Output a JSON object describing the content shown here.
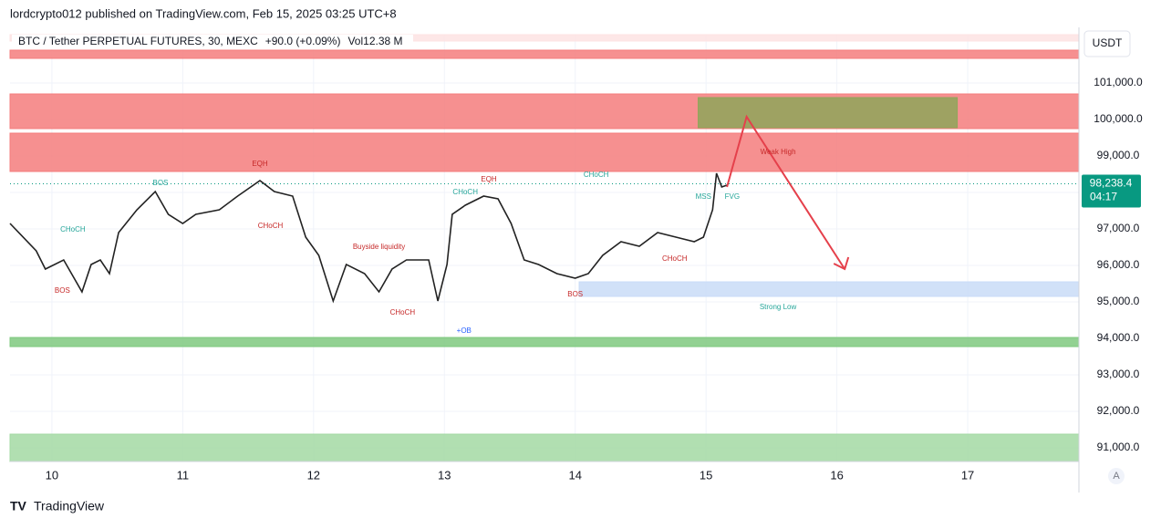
{
  "header": {
    "publisher": "lordcrypto012 published on TradingView.com, Feb 15, 2025 03:25 UTC+8"
  },
  "footer": {
    "brand": "TradingView"
  },
  "chart_data": {
    "type": "line",
    "title": "BTC / Tether PERPETUAL FUTURES, 30, MEXC",
    "change": "+90.0 (+0.09%)",
    "volume_label": "Vol",
    "volume": "12.38 M",
    "currency": "USDT",
    "scale_mode": "A",
    "last_price": {
      "value": 98238.4,
      "label": "98,238.4"
    },
    "countdown": "04:17",
    "x": [
      9.68,
      9.88,
      9.95,
      10.09,
      10.23,
      10.3,
      10.37,
      10.44,
      10.51,
      10.65,
      10.79,
      10.89,
      11.0,
      11.1,
      11.28,
      11.42,
      11.59,
      11.7,
      11.84,
      11.94,
      12.04,
      12.15,
      12.25,
      12.39,
      12.5,
      12.6,
      12.71,
      12.88,
      12.95,
      13.02,
      13.06,
      13.16,
      13.3,
      13.41,
      13.51,
      13.61,
      13.72,
      13.86,
      14.0,
      14.1,
      14.21,
      14.35,
      14.49,
      14.63,
      14.77,
      14.91,
      14.98,
      15.05,
      15.08,
      15.12,
      15.16
    ],
    "series": [
      {
        "color": "#222222",
        "values": [
          97150,
          96400,
          95900,
          96150,
          95275,
          96025,
          96150,
          95775,
          96900,
          97525,
          98025,
          97400,
          97150,
          97400,
          97525,
          97900,
          98325,
          98025,
          97900,
          96775,
          96275,
          95025,
          96025,
          95775,
          95275,
          95900,
          96150,
          96150,
          95025,
          96025,
          97400,
          97650,
          97900,
          97825,
          97150,
          96150,
          96025,
          95775,
          95650,
          95775,
          96275,
          96650,
          96525,
          96900,
          96775,
          96650,
          96775,
          97525,
          98525,
          98150,
          98200
        ]
      }
    ],
    "xlim": [
      9.68,
      17.85
    ],
    "xticks": [
      10,
      11,
      12,
      13,
      14,
      15,
      16,
      17
    ],
    "ylim": [
      90625,
      102325
    ],
    "yticks": [
      {
        "value": 101000,
        "label": "101,000.0"
      },
      {
        "value": 100000,
        "label": "100,000.0"
      },
      {
        "value": 99000,
        "label": "99,000.0"
      },
      {
        "value": 98000,
        "label": "98,000.0"
      },
      {
        "value": 97000,
        "label": "97,000.0"
      },
      {
        "value": 96000,
        "label": "96,000.0"
      },
      {
        "value": 95000,
        "label": "95,000.0"
      },
      {
        "value": 94000,
        "label": "94,000.0"
      },
      {
        "value": 93000,
        "label": "93,000.0"
      },
      {
        "value": 92000,
        "label": "92,000.0"
      },
      {
        "value": 91000,
        "label": "91,000.0"
      }
    ],
    "grid": true,
    "zones": [
      {
        "from": 102150,
        "to": 102325,
        "color": "#fde3e3"
      },
      {
        "from": 101675,
        "to": 101900,
        "color": "#f47c7c"
      },
      {
        "from": 99750,
        "to": 100700,
        "color": "#f47c7c"
      },
      {
        "from": 98575,
        "to": 99625,
        "color": "#f47c7c"
      },
      {
        "from": 93775,
        "to": 94025,
        "color": "#7fc97f"
      },
      {
        "from": 90625,
        "to": 91375,
        "color": "#a3d9a3"
      },
      {
        "from": 95150,
        "to": 95550,
        "color": "#c9dcf7",
        "x": [
          14.03,
          17.85
        ]
      },
      {
        "from": 99775,
        "to": 100600,
        "color": "#8ea65a",
        "x": [
          14.94,
          16.92
        ]
      }
    ],
    "projection": {
      "color": "#e5404b",
      "x": [
        15.16,
        15.31,
        16.06
      ],
      "values": [
        98150,
        100075,
        95900
      ]
    },
    "annotations": [
      {
        "text": "EQH",
        "x": 11.59,
        "y": 98775,
        "color": "#c62828"
      },
      {
        "text": "EQH",
        "x": 13.34,
        "y": 98350,
        "color": "#c62828"
      },
      {
        "text": "CHoCH",
        "x": 14.16,
        "y": 98475,
        "color": "#26a69a"
      },
      {
        "text": "Weak High",
        "x": 15.55,
        "y": 99100,
        "color": "#c62828"
      },
      {
        "text": "Strong Low",
        "x": 15.55,
        "y": 94850,
        "color": "#26a69a"
      },
      {
        "text": "+OB",
        "x": 13.15,
        "y": 94200,
        "color": "#2962ff"
      },
      {
        "text": "FVG",
        "x": 15.2,
        "y": 97875,
        "color": "#26a69a"
      },
      {
        "text": "MSS",
        "x": 14.98,
        "y": 97875,
        "color": "#26a69a"
      },
      {
        "text": "Buyside liquidity",
        "x": 12.5,
        "y": 96500,
        "color": "#c62828"
      },
      {
        "text": "BOS",
        "x": 10.83,
        "y": 98250,
        "color": "#26a69a"
      },
      {
        "text": "CHoCH",
        "x": 10.16,
        "y": 96975,
        "color": "#26a69a"
      },
      {
        "text": "BOS",
        "x": 10.08,
        "y": 95300,
        "color": "#c62828"
      },
      {
        "text": "CHoCH",
        "x": 11.67,
        "y": 97075,
        "color": "#c62828"
      },
      {
        "text": "CHoCH",
        "x": 12.68,
        "y": 94700,
        "color": "#c62828"
      },
      {
        "text": "BOS",
        "x": 14.0,
        "y": 95200,
        "color": "#c62828"
      },
      {
        "text": "CHoCH",
        "x": 14.76,
        "y": 96175,
        "color": "#c62828"
      },
      {
        "text": "CHoCH",
        "x": 13.16,
        "y": 98000,
        "color": "#26a69a"
      }
    ]
  }
}
